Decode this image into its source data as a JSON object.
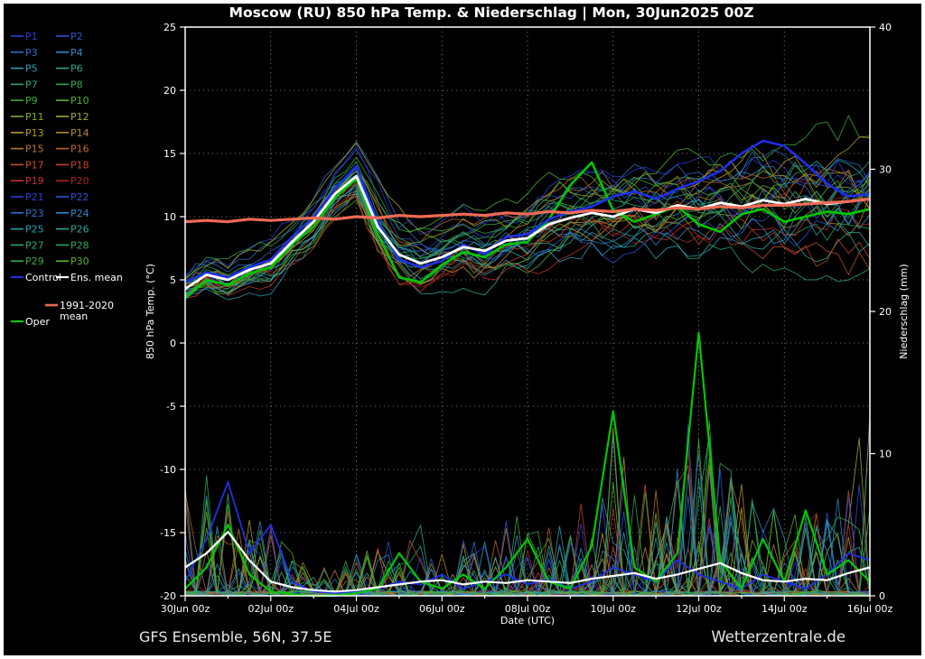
{
  "title": "Moscow  (RU)  850 hPa Temp. & Niederschlag | Mon, 30Jun2025 00Z",
  "footer": {
    "left": "GFS Ensemble, 56N, 37.5E",
    "right": "Wetterzentrale.de"
  },
  "legend": {
    "member_labels": [
      "P1",
      "P2",
      "P3",
      "P4",
      "P5",
      "P6",
      "P7",
      "P8",
      "P9",
      "P10",
      "P11",
      "P12",
      "P13",
      "P14",
      "P15",
      "P16",
      "P17",
      "P18",
      "P19",
      "P20",
      "P21",
      "P22",
      "P23",
      "P24",
      "P25",
      "P26",
      "P27",
      "P28",
      "P29",
      "P30"
    ],
    "control": {
      "label": "Control",
      "color": "#1f2fe8"
    },
    "ens_mean": {
      "label": "Ens. mean",
      "color": "#ffffff"
    },
    "clim": {
      "label_line1": "1991-2020",
      "label_line2": "mean",
      "color": "#ef6a55"
    },
    "oper": {
      "label": "Oper",
      "color": "#00c800"
    }
  },
  "chart_data": {
    "type": "line",
    "title": "Moscow  (RU)  850 hPa Temp. & Niederschlag | Mon, 30Jun2025 00Z",
    "xlabel": "Date (UTC)",
    "ylabel_left": "850 hPa Temp. (°C)",
    "ylabel_right": "Niederschlag (mm)",
    "x_start": "30Jun2025 00Z",
    "x_end": "16Jul2025 00Z",
    "time_step_hours": 12,
    "n_points": 33,
    "x_tick_labels": [
      "30Jun 00z",
      "02Jul 00z",
      "04Jul 00z",
      "06Jul 00z",
      "08Jul 00z",
      "10Jul 00z",
      "12Jul 00z",
      "14Jul 00z",
      "16Jul 00z"
    ],
    "y_left_ticks": [
      25,
      20,
      15,
      10,
      5,
      0,
      -5,
      -10,
      -15,
      -20
    ],
    "y_left_range": [
      -20,
      25
    ],
    "y_right_ticks": [
      40,
      30,
      20,
      10,
      0
    ],
    "y_right_range": [
      0,
      40
    ],
    "grid": "dotted",
    "legend_position": "outside-left",
    "series": {
      "ens_mean_temp": [
        4.3,
        5.4,
        5.0,
        5.8,
        6.3,
        8.0,
        9.6,
        11.8,
        13.2,
        9.2,
        7.0,
        6.3,
        6.8,
        7.6,
        7.3,
        8.1,
        8.3,
        9.4,
        9.9,
        10.3,
        10.0,
        10.6,
        10.3,
        10.9,
        10.6,
        11.1,
        10.8,
        11.3,
        11.0,
        11.4,
        11.0,
        11.2,
        11.4
      ],
      "clim_mean_temp": [
        9.6,
        9.7,
        9.6,
        9.8,
        9.7,
        9.8,
        9.9,
        9.8,
        10.0,
        9.9,
        10.1,
        10.0,
        10.1,
        10.2,
        10.1,
        10.3,
        10.2,
        10.4,
        10.3,
        10.5,
        10.4,
        10.6,
        10.5,
        10.7,
        10.6,
        10.8,
        10.7,
        10.9,
        10.9,
        11.0,
        11.1,
        11.2,
        11.4
      ],
      "control_temp": [
        4.8,
        5.6,
        5.2,
        6.0,
        6.6,
        8.4,
        10.0,
        12.2,
        14.0,
        9.6,
        6.6,
        6.0,
        6.5,
        7.8,
        7.0,
        8.4,
        8.6,
        9.8,
        10.4,
        10.8,
        11.6,
        12.0,
        11.4,
        12.2,
        12.8,
        13.6,
        15.0,
        16.0,
        15.6,
        14.2,
        12.6,
        11.6,
        11.8
      ],
      "oper_temp": [
        3.6,
        5.0,
        4.6,
        5.5,
        6.0,
        7.8,
        9.2,
        11.5,
        13.0,
        8.6,
        5.2,
        4.8,
        6.2,
        7.2,
        6.8,
        7.8,
        8.0,
        9.8,
        12.5,
        14.3,
        10.5,
        9.6,
        10.2,
        10.8,
        9.4,
        8.8,
        10.2,
        10.6,
        9.6,
        10.0,
        10.4,
        10.2,
        10.6
      ],
      "envelope_min_temp": [
        3.0,
        3.8,
        3.2,
        4.0,
        4.4,
        6.0,
        7.4,
        9.6,
        11.0,
        6.4,
        4.2,
        3.6,
        4.4,
        5.2,
        4.8,
        5.6,
        5.4,
        6.4,
        6.6,
        7.0,
        6.6,
        7.0,
        6.6,
        7.0,
        6.4,
        6.8,
        6.2,
        6.6,
        6.2,
        6.6,
        6.0,
        5.8,
        6.0
      ],
      "envelope_max_temp": [
        6.0,
        6.8,
        6.6,
        7.6,
        8.2,
        10.0,
        11.6,
        14.0,
        15.6,
        12.4,
        10.0,
        9.2,
        9.6,
        10.4,
        10.2,
        11.0,
        11.4,
        12.6,
        13.2,
        13.8,
        13.6,
        14.2,
        14.0,
        14.8,
        14.6,
        15.2,
        15.0,
        16.0,
        16.5,
        17.0,
        17.5,
        18.5,
        19.0
      ],
      "ens_mean_precip": [
        2.0,
        3.0,
        4.5,
        2.5,
        1.0,
        0.6,
        0.4,
        0.3,
        0.4,
        0.6,
        0.8,
        1.0,
        1.1,
        0.8,
        1.0,
        0.9,
        1.1,
        1.0,
        0.9,
        1.2,
        1.4,
        1.6,
        1.2,
        1.5,
        1.9,
        2.3,
        1.6,
        1.1,
        1.0,
        1.2,
        1.1,
        1.6,
        2.0
      ],
      "control_precip": [
        1.0,
        4.0,
        8.0,
        3.0,
        5.0,
        1.0,
        0.3,
        0.2,
        0.3,
        0.5,
        1.0,
        0.8,
        1.5,
        0.5,
        1.0,
        1.5,
        0.8,
        1.2,
        0.5,
        1.0,
        2.0,
        1.5,
        1.0,
        2.5,
        1.5,
        1.0,
        0.5,
        1.5,
        1.0,
        0.5,
        1.5,
        3.0,
        2.5
      ],
      "oper_precip": [
        0.5,
        2.0,
        5.0,
        1.5,
        0.3,
        0.1,
        0,
        0,
        0.2,
        0.5,
        3.0,
        1.0,
        0.5,
        1.5,
        0.5,
        2.0,
        4.0,
        1.0,
        0.5,
        3.5,
        13.0,
        2.0,
        1.0,
        3.0,
        18.5,
        2.5,
        0.5,
        4.0,
        1.0,
        6.0,
        1.5,
        2.5,
        1.0
      ],
      "member_precip_max": [
        8,
        9,
        8,
        6,
        5,
        3,
        2,
        2,
        3,
        4,
        4,
        5,
        5,
        4,
        4,
        6,
        6,
        5,
        5,
        8,
        13,
        9,
        8,
        10,
        18,
        10,
        8,
        6,
        7,
        6,
        6,
        8,
        16
      ]
    },
    "members": {
      "count": 30,
      "seed": 7,
      "palette20": [
        "#2a3fd4",
        "#2a55d4",
        "#2a6fc8",
        "#2a8cc8",
        "#2aa0b4",
        "#2aa896",
        "#2aa878",
        "#2aa85a",
        "#3aaa3c",
        "#4fb42a",
        "#7fae2a",
        "#a8a82a",
        "#b89a2a",
        "#b8882a",
        "#b8762a",
        "#c0642a",
        "#c0522a",
        "#c8422a",
        "#c83030",
        "#a82424"
      ]
    }
  }
}
